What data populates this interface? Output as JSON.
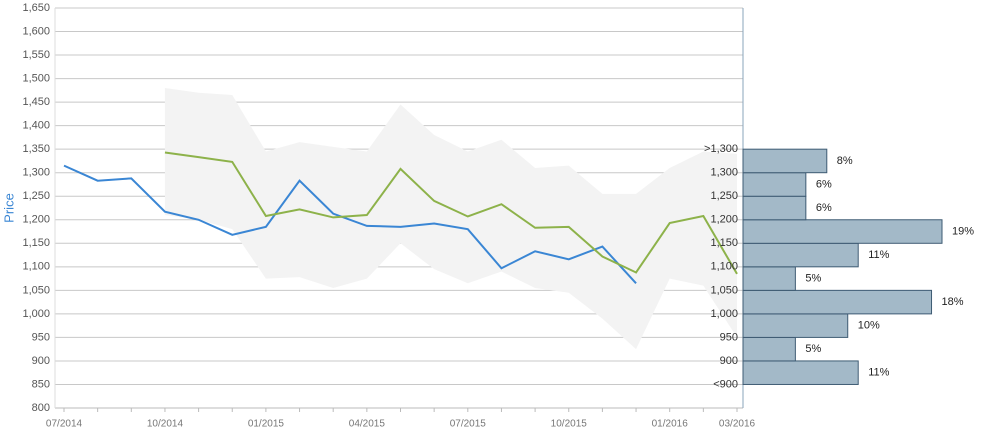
{
  "chart_data": [
    {
      "type": "line",
      "y_label": "Price",
      "categories": [
        "07/2014",
        null,
        null,
        "10/2014",
        null,
        null,
        "01/2015",
        null,
        null,
        "04/2015",
        null,
        null,
        "07/2015",
        null,
        null,
        "10/2015",
        null,
        null,
        "01/2016",
        null,
        "03/2016"
      ],
      "ylim": [
        800,
        1650
      ],
      "yticks": [
        800,
        850,
        900,
        950,
        {
          "value": 1000,
          "label": "1,000"
        },
        {
          "value": 1050,
          "label": "1,050"
        },
        {
          "value": 1100,
          "label": "1,100"
        },
        {
          "value": 1150,
          "label": "1,150"
        },
        {
          "value": 1200,
          "label": "1,200"
        },
        {
          "value": 1250,
          "label": "1,250"
        },
        {
          "value": 1300,
          "label": "1,300"
        },
        {
          "value": 1350,
          "label": "1,350"
        },
        {
          "value": 1400,
          "label": "1,400"
        },
        {
          "value": 1450,
          "label": "1,450"
        },
        {
          "value": 1500,
          "label": "1,500"
        },
        {
          "value": 1550,
          "label": "1,550"
        },
        {
          "value": 1600,
          "label": "1,600"
        },
        {
          "value": 1650,
          "label": "1,650"
        }
      ],
      "grid": true,
      "band": {
        "color": "#f3f3f3",
        "upper": [
          null,
          null,
          null,
          1480,
          1470,
          1465,
          1345,
          1365,
          1355,
          1345,
          1445,
          1380,
          1345,
          1370,
          1310,
          1315,
          1255,
          1255,
          1310,
          1345,
          1340
        ],
        "lower": [
          null,
          null,
          null,
          1210,
          1200,
          1180,
          1075,
          1078,
          1055,
          1075,
          1150,
          1095,
          1065,
          1090,
          1055,
          1045,
          990,
          925,
          1075,
          1060,
          950
        ]
      },
      "series": [
        {
          "color": "#3a86d4",
          "values": [
            1315,
            1283,
            1288,
            1217,
            1200,
            1168,
            1185,
            1283,
            1213,
            1187,
            1185,
            1192,
            1180,
            1097,
            1133,
            1116,
            1143,
            1065,
            null,
            null,
            null
          ]
        },
        {
          "color": "#8db24a",
          "values": [
            null,
            null,
            null,
            1343,
            1333,
            1323,
            1208,
            1222,
            1205,
            1210,
            1308,
            1240,
            1207,
            1233,
            1183,
            1185,
            1122,
            1088,
            1193,
            1208,
            1085
          ]
        }
      ]
    },
    {
      "type": "histogram",
      "bins": [
        850,
        900,
        950,
        1000,
        1050,
        1100,
        1150,
        1200,
        1250,
        1300,
        1350
      ],
      "values": [
        11,
        5,
        10,
        18,
        5,
        11,
        19,
        6,
        6,
        8
      ],
      "value_labels": [
        "11%",
        "5%",
        "10%",
        "18%",
        "5%",
        "11%",
        "19%",
        "6%",
        "6%",
        "8%"
      ],
      "color": "#a3b9c8",
      "ylim": [
        800,
        1650
      ],
      "xlim": [
        0,
        19
      ],
      "yticks": [
        {
          "value": 850,
          "label": "<900"
        },
        900,
        950,
        {
          "value": 1000,
          "label": "1,000"
        },
        {
          "value": 1050,
          "label": "1,050"
        },
        {
          "value": 1100,
          "label": "1,100"
        },
        {
          "value": 1150,
          "label": "1,150"
        },
        {
          "value": 1200,
          "label": "1,200"
        },
        {
          "value": 1250,
          "label": "1,250"
        },
        {
          "value": 1300,
          "label": "1,300"
        },
        {
          "value": 1350,
          "label": ">1,300"
        }
      ]
    }
  ]
}
